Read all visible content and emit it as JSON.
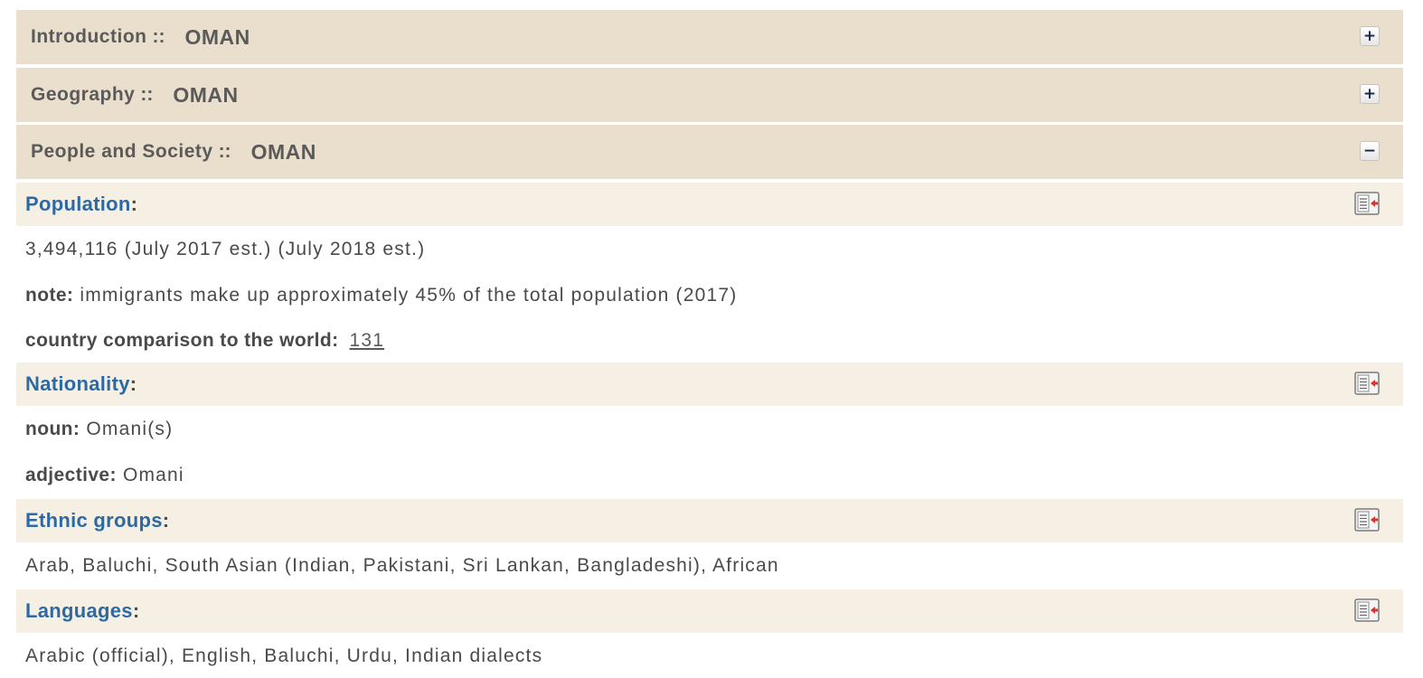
{
  "sections": [
    {
      "label": "Introduction",
      "separator": "::",
      "country": "OMAN",
      "toggle": "+",
      "state": "collapsed"
    },
    {
      "label": "Geography",
      "separator": "::",
      "country": "OMAN",
      "toggle": "+",
      "state": "collapsed"
    },
    {
      "label": "People and Society",
      "separator": "::",
      "country": "OMAN",
      "toggle": "−",
      "state": "expanded"
    }
  ],
  "fields": {
    "population": {
      "title": "Population",
      "colon": ":",
      "icon": "field-listing-icon",
      "value": "3,494,116 (July 2017 est.) (July 2018 est.)",
      "note_label": "note:",
      "note_text": "immigrants make up approximately 45% of the total population (2017)",
      "comparison_label": "country comparison to the world:",
      "comparison_rank": "131"
    },
    "nationality": {
      "title": "Nationality",
      "colon": ":",
      "icon": "field-listing-icon",
      "noun_label": "noun:",
      "noun_value": "Omani(s)",
      "adjective_label": "adjective:",
      "adjective_value": "Omani"
    },
    "ethnic_groups": {
      "title": "Ethnic groups",
      "colon": ":",
      "icon": "field-listing-icon",
      "value": "Arab, Baluchi, South Asian (Indian, Pakistani, Sri Lankan, Bangladeshi), African"
    },
    "languages": {
      "title": "Languages",
      "colon": ":",
      "icon": "field-listing-icon",
      "value": "Arabic (official), English, Baluchi, Urdu, Indian dialects"
    }
  },
  "colors": {
    "section_bg": "#e9dfcc",
    "field_header_bg": "#f5efe4",
    "field_title": "#2d6aa3",
    "body_text": "#4a4a4a"
  }
}
